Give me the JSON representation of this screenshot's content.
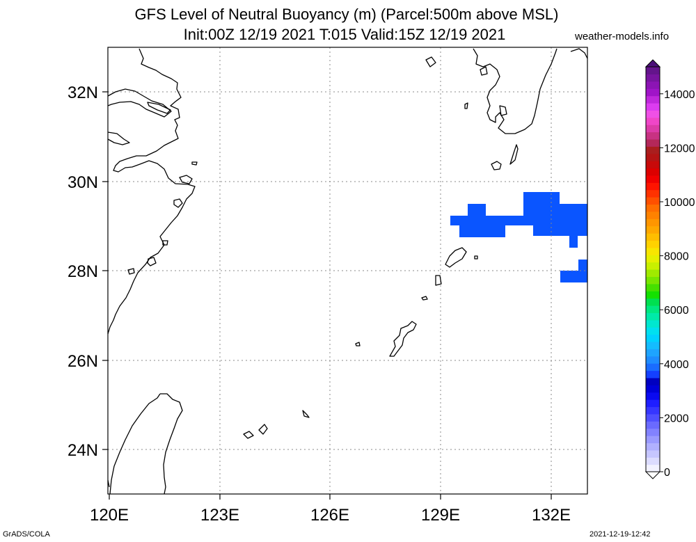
{
  "title": {
    "line1": "GFS Level of Neutral Buoyancy (m) (Parcel:500m above MSL)",
    "line2": "Init:00Z 12/19 2021 T:015 Valid:15Z 12/19 2021"
  },
  "source_label": "weather-models.info",
  "footer": {
    "left": "GrADS/COLA",
    "right": "2021-12-19-12:42"
  },
  "map": {
    "lon_labels": [
      "120E",
      "123E",
      "126E",
      "129E",
      "132E"
    ],
    "lat_labels": [
      "32N",
      "30N",
      "28N",
      "26N",
      "24N"
    ],
    "lon_range": [
      120,
      133
    ],
    "lat_range": [
      23,
      33
    ],
    "field_color": "#0a55ff",
    "coast_color": "#000000",
    "grid": "dotted"
  },
  "colorbar": {
    "labels": [
      "0",
      "2000",
      "4000",
      "6000",
      "8000",
      "10000",
      "12000",
      "14000"
    ],
    "range": [
      0,
      15000
    ],
    "colors": [
      "#f2f2ff",
      "#dcdcff",
      "#c6c6ff",
      "#b0b0ff",
      "#9a9aff",
      "#8282ff",
      "#6a6aff",
      "#4f4fff",
      "#3636ff",
      "#1e1eff",
      "#0a0af0",
      "#0000d8",
      "#0000c0",
      "#1440ff",
      "#1a6cff",
      "#1e8cff",
      "#1ea4ff",
      "#14bcff",
      "#00d2ff",
      "#00e0f0",
      "#00e8d0",
      "#00eaa8",
      "#00e880",
      "#00e050",
      "#14e000",
      "#46e000",
      "#78e600",
      "#a0ea00",
      "#c8f000",
      "#e6f000",
      "#f8e600",
      "#ffd200",
      "#ffbe00",
      "#ffa800",
      "#ff9600",
      "#ff8200",
      "#ff6e00",
      "#ff5000",
      "#ff3200",
      "#ff1400",
      "#f00000",
      "#dc0000",
      "#c80a0a",
      "#b41414",
      "#aa1e1e",
      "#b4285a",
      "#c83282",
      "#dc3ca8",
      "#f046c8",
      "#f050e6",
      "#dc3cf0",
      "#c028dc",
      "#a014c8",
      "#8c14b4",
      "#7814a0",
      "#64148c"
    ]
  }
}
